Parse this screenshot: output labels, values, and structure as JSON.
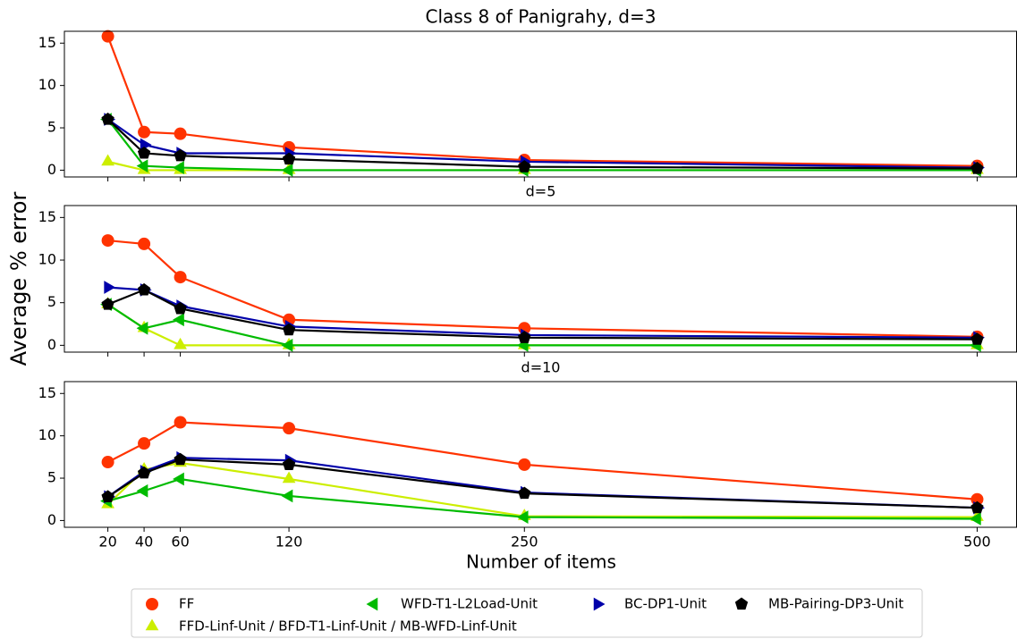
{
  "chart_data": [
    {
      "type": "line",
      "title": "Class 8 of Panigrahy, d=3",
      "ylabel": "Average % error",
      "x": [
        20,
        40,
        60,
        120,
        250,
        500
      ],
      "xlim": [
        -4,
        522
      ],
      "xticks": [
        20,
        40,
        60,
        120,
        250,
        500
      ],
      "ylim": [
        -0.8,
        16.4
      ],
      "yticks": [
        0,
        5,
        10,
        15
      ],
      "series": [
        {
          "name": "FF",
          "color": "#ff3300",
          "marker": "circle",
          "values": [
            15.8,
            4.5,
            4.3,
            2.7,
            1.2,
            0.5
          ]
        },
        {
          "name": "WFD-T1-L2Load-Unit",
          "color": "#00bb00",
          "marker": "triangle-left",
          "values": [
            6.0,
            0.5,
            0.3,
            0.0,
            0.0,
            0.0
          ]
        },
        {
          "name": "BC-DP1-Unit",
          "color": "#0000aa",
          "marker": "triangle-right",
          "values": [
            6.0,
            3.0,
            2.0,
            2.0,
            1.0,
            0.3
          ]
        },
        {
          "name": "MB-Pairing-DP3-Unit",
          "color": "#000000",
          "marker": "pentagon",
          "values": [
            6.0,
            2.0,
            1.7,
            1.3,
            0.4,
            0.2
          ]
        },
        {
          "name": "FFD-Linf-Unit / BFD-T1-Linf-Unit / MB-WFD-Linf-Unit",
          "color": "#ccee00",
          "marker": "triangle-up",
          "values": [
            1.0,
            0.0,
            0.0,
            0.0,
            0.0,
            0.0
          ]
        }
      ]
    },
    {
      "type": "line",
      "title": "d=5",
      "x": [
        20,
        40,
        60,
        120,
        250,
        500
      ],
      "xlim": [
        -4,
        522
      ],
      "xticks": [
        20,
        40,
        60,
        120,
        250,
        500
      ],
      "ylim": [
        -0.8,
        16.4
      ],
      "yticks": [
        0,
        5,
        10,
        15
      ],
      "series": [
        {
          "name": "FF",
          "color": "#ff3300",
          "marker": "circle",
          "values": [
            12.3,
            11.9,
            8.0,
            3.0,
            2.0,
            1.0
          ]
        },
        {
          "name": "WFD-T1-L2Load-Unit",
          "color": "#00bb00",
          "marker": "triangle-left",
          "values": [
            4.8,
            2.0,
            3.0,
            0.0,
            0.0,
            0.0
          ]
        },
        {
          "name": "BC-DP1-Unit",
          "color": "#0000aa",
          "marker": "triangle-right",
          "values": [
            6.8,
            6.5,
            4.6,
            2.2,
            1.2,
            0.9
          ]
        },
        {
          "name": "MB-Pairing-DP3-Unit",
          "color": "#000000",
          "marker": "pentagon",
          "values": [
            4.8,
            6.5,
            4.3,
            1.8,
            0.9,
            0.7
          ]
        },
        {
          "name": "FFD-Linf-Unit / BFD-T1-Linf-Unit / MB-WFD-Linf-Unit",
          "color": "#ccee00",
          "marker": "triangle-up",
          "values": [
            4.8,
            2.0,
            0.0,
            0.0,
            0.0,
            0.0
          ]
        }
      ]
    },
    {
      "type": "line",
      "title": "d=10",
      "xlabel": "Number of items",
      "x": [
        20,
        40,
        60,
        120,
        250,
        500
      ],
      "xlim": [
        -4,
        522
      ],
      "xticks": [
        20,
        40,
        60,
        120,
        250,
        500
      ],
      "ylim": [
        -0.8,
        16.4
      ],
      "yticks": [
        0,
        5,
        10,
        15
      ],
      "series": [
        {
          "name": "FF",
          "color": "#ff3300",
          "marker": "circle",
          "values": [
            6.9,
            9.1,
            11.6,
            10.9,
            6.6,
            2.5
          ]
        },
        {
          "name": "WFD-T1-L2Load-Unit",
          "color": "#00bb00",
          "marker": "triangle-left",
          "values": [
            2.3,
            3.5,
            4.9,
            2.9,
            0.4,
            0.2
          ]
        },
        {
          "name": "BC-DP1-Unit",
          "color": "#0000aa",
          "marker": "triangle-right",
          "values": [
            2.8,
            5.8,
            7.4,
            7.1,
            3.3,
            1.5
          ]
        },
        {
          "name": "MB-Pairing-DP3-Unit",
          "color": "#000000",
          "marker": "pentagon",
          "values": [
            2.8,
            5.6,
            7.2,
            6.6,
            3.2,
            1.5
          ]
        },
        {
          "name": "FFD-Linf-Unit / BFD-T1-Linf-Unit / MB-WFD-Linf-Unit",
          "color": "#ccee00",
          "marker": "triangle-up",
          "values": [
            1.9,
            6.0,
            6.8,
            4.9,
            0.5,
            0.4
          ]
        }
      ]
    }
  ]
}
